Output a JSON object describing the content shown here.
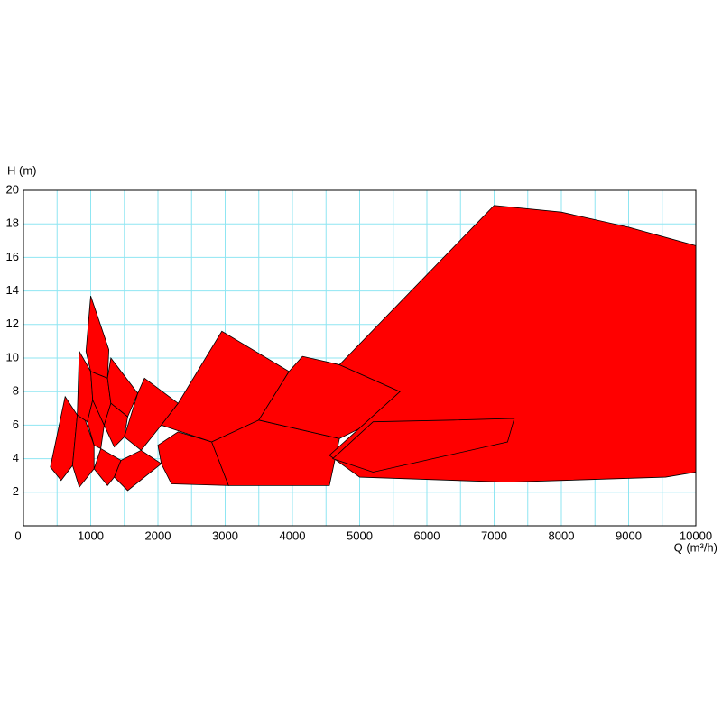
{
  "chart_data": {
    "type": "polygon",
    "x_label": "Q (m³/h)",
    "y_label": "H (m)",
    "xlim": [
      0,
      10000
    ],
    "ylim": [
      0,
      20
    ],
    "xticks": [
      0,
      1000,
      2000,
      3000,
      4000,
      5000,
      6000,
      7000,
      8000,
      9000,
      10000
    ],
    "yticks": [
      2,
      4,
      6,
      8,
      10,
      12,
      14,
      16,
      18,
      20
    ],
    "x_minor_grid": [
      500,
      1500,
      2500,
      3500,
      4500,
      5500,
      6500,
      7500,
      8500,
      9500
    ],
    "grid": true,
    "grid_color": "#8fe6f2",
    "color": "#ff0000",
    "edge_color": "#000000",
    "regions": [
      {
        "q": [
          400,
          620,
          800,
          730,
          560
        ],
        "h": [
          3.5,
          7.7,
          6.6,
          3.6,
          2.7
        ]
      },
      {
        "q": [
          730,
          800,
          900,
          1050,
          1050,
          830
        ],
        "h": [
          3.6,
          6.6,
          6.5,
          4.8,
          3.4,
          2.3
        ]
      },
      {
        "q": [
          800,
          830,
          1000,
          1030,
          950
        ],
        "h": [
          6.6,
          10.4,
          9.2,
          7.5,
          6.2
        ]
      },
      {
        "q": [
          950,
          1030,
          1200,
          1150,
          1050
        ],
        "h": [
          6.2,
          7.5,
          6.0,
          4.6,
          4.8
        ]
      },
      {
        "q": [
          930,
          1000,
          1270,
          1250,
          1000
        ],
        "h": [
          10.4,
          13.7,
          10.5,
          8.8,
          9.2
        ]
      },
      {
        "q": [
          1000,
          1250,
          1300,
          1200,
          1030
        ],
        "h": [
          9.2,
          8.8,
          7.3,
          6.0,
          7.5
        ]
      },
      {
        "q": [
          1050,
          1150,
          1450,
          1350,
          1250
        ],
        "h": [
          3.4,
          4.6,
          3.9,
          2.9,
          2.4
        ]
      },
      {
        "q": [
          1250,
          1300,
          1700,
          1550,
          1300
        ],
        "h": [
          8.8,
          10.0,
          7.9,
          6.5,
          7.3
        ]
      },
      {
        "q": [
          1200,
          1300,
          1550,
          1500,
          1350
        ],
        "h": [
          6.0,
          7.3,
          6.5,
          5.3,
          4.7
        ]
      },
      {
        "q": [
          1350,
          1450,
          1750,
          2050,
          1550
        ],
        "h": [
          2.9,
          3.9,
          4.5,
          3.7,
          2.1
        ]
      },
      {
        "q": [
          1500,
          1700,
          1800,
          2300,
          2050,
          1750
        ],
        "h": [
          5.3,
          7.9,
          8.8,
          7.3,
          6.0,
          4.5
        ]
      },
      {
        "q": [
          2050,
          2000,
          2300,
          2800,
          3050,
          2200
        ],
        "h": [
          3.7,
          4.8,
          5.6,
          5.0,
          2.4,
          2.5
        ]
      },
      {
        "q": [
          2050,
          2300,
          2950,
          3950,
          3500,
          2800
        ],
        "h": [
          6.0,
          7.3,
          11.6,
          9.2,
          6.3,
          5.0
        ]
      },
      {
        "q": [
          2800,
          3500,
          4700,
          4550,
          3050
        ],
        "h": [
          5.0,
          6.3,
          5.2,
          2.4,
          2.4
        ]
      },
      {
        "q": [
          3500,
          3950,
          4150,
          4700,
          5600,
          5200,
          4700
        ],
        "h": [
          6.3,
          9.2,
          10.1,
          9.6,
          8.0,
          6.2,
          5.2
        ]
      },
      {
        "q": [
          4700,
          7000,
          8000,
          9000,
          10000,
          10000,
          9550,
          7200,
          5000,
          4550,
          5600
        ],
        "h": [
          9.6,
          19.1,
          18.7,
          17.8,
          16.7,
          3.2,
          2.9,
          2.6,
          2.9,
          4.2,
          8.0
        ]
      },
      {
        "q": [
          4600,
          5200,
          6400,
          7300,
          7200,
          5200
        ],
        "h": [
          4.0,
          6.2,
          6.3,
          6.4,
          5.0,
          3.2
        ]
      }
    ]
  }
}
